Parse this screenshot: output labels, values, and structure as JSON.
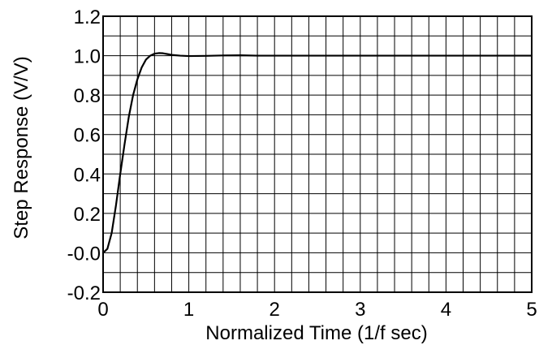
{
  "chart_data": {
    "type": "line",
    "xlabel": "Normalized Time (1/f sec)",
    "ylabel": "Step Response (V/V)",
    "xlim": [
      0,
      5
    ],
    "ylim": [
      -0.2,
      1.2
    ],
    "x_ticks": [
      0,
      1,
      2,
      3,
      4,
      5
    ],
    "y_ticks": [
      {
        "value": 1.2,
        "label": "1.2"
      },
      {
        "value": 1.0,
        "label": "1.0"
      },
      {
        "value": 0.8,
        "label": "0.8"
      },
      {
        "value": 0.6,
        "label": "0.6"
      },
      {
        "value": 0.4,
        "label": "0.4"
      },
      {
        "value": 0.2,
        "label": "0.2"
      },
      {
        "value": 0.0,
        "label": "-0.0"
      },
      {
        "value": -0.2,
        "label": "-0.2"
      }
    ],
    "grid": true,
    "grid_step": {
      "x": 0.2,
      "y": 0.1
    },
    "series": [
      {
        "color": "#000000",
        "x": [
          0,
          0.05,
          0.1,
          0.15,
          0.2,
          0.25,
          0.3,
          0.35,
          0.4,
          0.45,
          0.5,
          0.55,
          0.6,
          0.65,
          0.7,
          0.75,
          0.8,
          0.9,
          1.0,
          1.2,
          1.4,
          1.6,
          1.8,
          2.0,
          2.5,
          3.0,
          3.5,
          4.0,
          4.5,
          5.0
        ],
        "y": [
          0.0,
          0.02,
          0.1,
          0.24,
          0.4,
          0.55,
          0.69,
          0.8,
          0.88,
          0.94,
          0.98,
          1.0,
          1.01,
          1.013,
          1.012,
          1.008,
          1.004,
          1.0,
          0.998,
          0.999,
          1.001,
          1.002,
          1.0,
          1.0,
          1.0,
          1.0,
          1.0,
          1.0,
          1.0,
          1.0
        ]
      }
    ]
  }
}
